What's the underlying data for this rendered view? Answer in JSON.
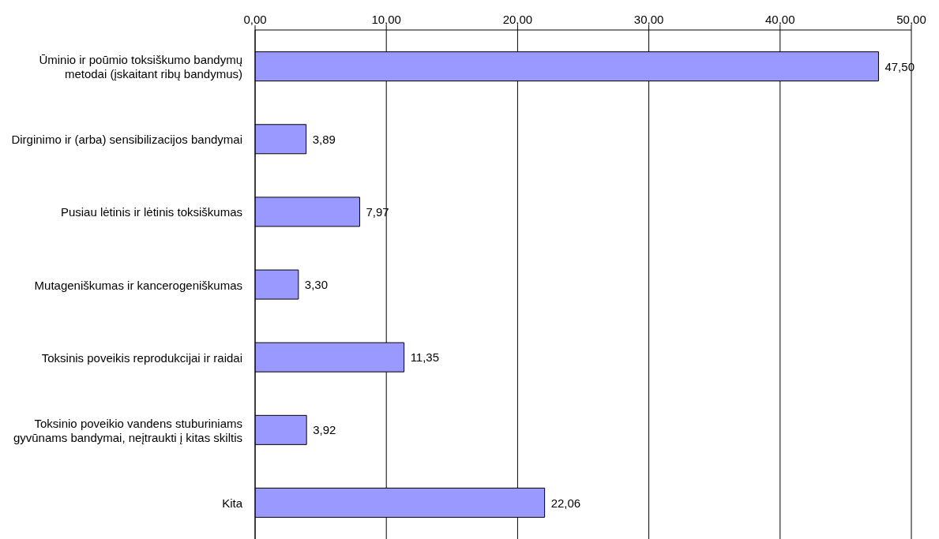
{
  "chart_data": {
    "type": "bar",
    "orientation": "horizontal",
    "categories": [
      "Ūminio ir poūmio toksiškumo bandymų metodai (įskaitant ribų bandymus)",
      "Dirginimo ir (arba) sensibilizacijos bandymai",
      "Pusiau lėtinis ir lėtinis toksiškumas",
      "Mutageniškumas ir kancerogeniškumas",
      "Toksinis poveikis reprodukcijai ir raidai",
      "Toksinio poveikio vandens stuburiniams gyvūnams bandymai, neįtraukti į kitas skiltis",
      "Kita"
    ],
    "values": [
      47.5,
      3.89,
      7.97,
      3.3,
      11.35,
      3.92,
      22.06
    ],
    "value_labels": [
      "47,50",
      "3,89",
      "7,97",
      "3,30",
      "11,35",
      "3,92",
      "22,06"
    ],
    "color": "#9999ff",
    "xlim": [
      0,
      50
    ],
    "xticks": [
      {
        "value": 0,
        "label": "0,00"
      },
      {
        "value": 10,
        "label": "10,00"
      },
      {
        "value": 20,
        "label": "20,00"
      },
      {
        "value": 30,
        "label": "30,00"
      },
      {
        "value": 40,
        "label": "40,00"
      },
      {
        "value": 50,
        "label": "50,00"
      }
    ],
    "grid": "x"
  }
}
